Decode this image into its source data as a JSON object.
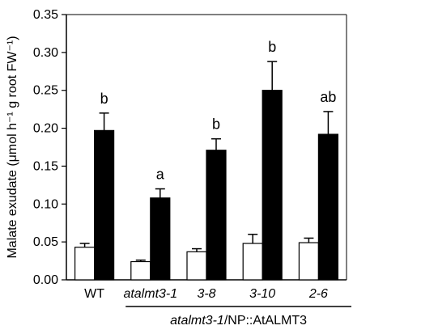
{
  "chart_data": {
    "type": "bar",
    "ylabel": "Malate exudate (μmol h⁻¹ g root FW⁻¹)",
    "ylim": [
      0,
      0.35
    ],
    "yticks": [
      "0.00",
      "0.05",
      "0.10",
      "0.15",
      "0.20",
      "0.25",
      "0.30",
      "0.35"
    ],
    "categories": [
      {
        "label": "WT",
        "italic": false
      },
      {
        "label": "atalmt3-1",
        "italic": true
      },
      {
        "label": "3-8",
        "italic": true
      },
      {
        "label": "3-10",
        "italic": true
      },
      {
        "label": "2-6",
        "italic": true
      }
    ],
    "group_label": {
      "italic_part": "atalmt3-1",
      "rest": "/NP::AtALMT3",
      "spans_categories": [
        1,
        4
      ]
    },
    "series": [
      {
        "fill": "#ffffff",
        "values": [
          0.043,
          0.024,
          0.037,
          0.048,
          0.049
        ],
        "errors": [
          0.005,
          0.002,
          0.004,
          0.012,
          0.006
        ]
      },
      {
        "fill": "#000000",
        "values": [
          0.197,
          0.108,
          0.171,
          0.25,
          0.192
        ],
        "errors": [
          0.023,
          0.012,
          0.015,
          0.038,
          0.03
        ]
      }
    ],
    "significance": [
      "b",
      "a",
      "b",
      "b",
      "ab"
    ]
  }
}
